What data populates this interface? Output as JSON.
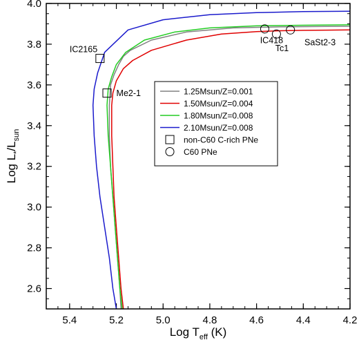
{
  "chart_data": {
    "type": "line",
    "xlabel": {
      "main": "Log T",
      "sub": "eff",
      "suffix": " (K)"
    },
    "ylabel": {
      "main": "Log L",
      "star": "*",
      "slash": "/L",
      "sub": "sun"
    },
    "xlim": [
      5.5,
      4.2
    ],
    "ylim": [
      2.5,
      4.0
    ],
    "x_reversed": true,
    "xticks": [
      "5.4",
      "5.2",
      "5.0",
      "4.8",
      "4.6",
      "4.4",
      "4.2"
    ],
    "yticks": [
      "2.6",
      "2.8",
      "3.0",
      "3.2",
      "3.4",
      "3.6",
      "3.8",
      "4.0"
    ],
    "grid": false,
    "legend_position": "center-right",
    "series": [
      {
        "name": "1.25Msun/Z=0.001",
        "color": "#808080",
        "x": [
          5.18,
          5.185,
          5.195,
          5.205,
          5.215,
          5.225,
          5.23,
          5.23,
          5.225,
          5.21,
          5.19,
          5.17,
          5.14,
          5.05,
          4.9,
          4.7,
          4.5,
          4.3,
          4.2
        ],
        "y": [
          2.5,
          2.6,
          2.75,
          2.9,
          3.05,
          3.2,
          3.35,
          3.5,
          3.6,
          3.65,
          3.7,
          3.74,
          3.77,
          3.82,
          3.86,
          3.88,
          3.885,
          3.887,
          3.888
        ]
      },
      {
        "name": "1.50Msun/Z=0.004",
        "color": "#e00000",
        "x": [
          5.17,
          5.18,
          5.19,
          5.2,
          5.21,
          5.215,
          5.22,
          5.22,
          5.215,
          5.2,
          5.17,
          5.13,
          5.05,
          4.9,
          4.75,
          4.6,
          4.5,
          4.4,
          4.3,
          4.2
        ],
        "y": [
          2.5,
          2.6,
          2.75,
          2.9,
          3.05,
          3.2,
          3.35,
          3.5,
          3.56,
          3.62,
          3.68,
          3.72,
          3.77,
          3.82,
          3.85,
          3.862,
          3.866,
          3.868,
          3.869,
          3.87
        ]
      },
      {
        "name": "1.80Msun/Z=0.008",
        "color": "#22cc22",
        "x": [
          5.175,
          5.185,
          5.195,
          5.205,
          5.215,
          5.225,
          5.235,
          5.24,
          5.235,
          5.22,
          5.2,
          5.16,
          5.08,
          4.95,
          4.8,
          4.6,
          4.4,
          4.2
        ],
        "y": [
          2.5,
          2.6,
          2.75,
          2.9,
          3.05,
          3.2,
          3.35,
          3.5,
          3.58,
          3.64,
          3.7,
          3.76,
          3.82,
          3.86,
          3.88,
          3.89,
          3.893,
          3.895
        ]
      },
      {
        "name": "2.10Msun/Z=0.008",
        "color": "#1a1acc",
        "x": [
          5.2,
          5.215,
          5.23,
          5.25,
          5.27,
          5.285,
          5.295,
          5.3,
          5.295,
          5.28,
          5.25,
          5.15,
          5.0,
          4.8,
          4.6,
          4.4,
          4.2
        ],
        "y": [
          2.5,
          2.6,
          2.75,
          2.9,
          3.05,
          3.2,
          3.35,
          3.5,
          3.58,
          3.66,
          3.76,
          3.87,
          3.92,
          3.945,
          3.955,
          3.96,
          3.962
        ]
      }
    ],
    "markers": [
      {
        "name": "non-C60 C-rich PNe",
        "shape": "square",
        "points": [
          [
            5.27,
            3.73
          ],
          [
            5.24,
            3.56
          ]
        ]
      },
      {
        "name": "C60 PNe",
        "shape": "circle",
        "points": [
          [
            4.565,
            3.875
          ],
          [
            4.515,
            3.85
          ],
          [
            4.455,
            3.87
          ]
        ]
      }
    ],
    "annotations": [
      {
        "text": "IC2165",
        "x": 5.4,
        "y": 3.76
      },
      {
        "text": "Me2-1",
        "x": 5.2,
        "y": 3.545
      },
      {
        "text": "IC418",
        "x": 4.585,
        "y": 3.805
      },
      {
        "text": "Tc1",
        "x": 4.52,
        "y": 3.765
      },
      {
        "text": "SaSt2-3",
        "x": 4.395,
        "y": 3.795
      }
    ]
  }
}
